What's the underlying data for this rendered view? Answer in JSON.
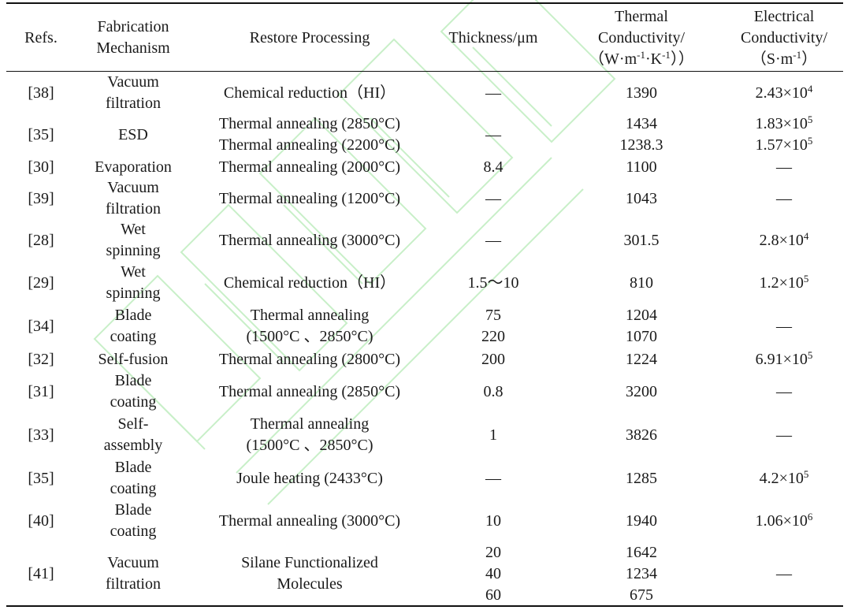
{
  "headers": {
    "refs": "Refs.",
    "mechanism": "Fabrication\nMechanism",
    "processing": "Restore Processing",
    "thickness": "Thickness/μm",
    "thermal_line1": "Thermal",
    "thermal_line2": "Conductivity/",
    "thermal_unit": {
      "open": "（W·m",
      "exp1": "-1",
      "mid": "·K",
      "exp2": "-1",
      "close": "））"
    },
    "electrical_line1": "Electrical",
    "electrical_line2": "Conductivity/",
    "electrical_unit": {
      "open": "（S·m",
      "exp1": "-1",
      "close": "）"
    }
  },
  "rows": [
    {
      "ref": "[38]",
      "mechanism": "Vacuum\nfiltration",
      "processing": [
        "Chemical reduction（HI）"
      ],
      "thickness": [
        "—"
      ],
      "thermal": [
        "1390"
      ],
      "electrical": [
        {
          "base": "2.43×10",
          "exp": "4"
        }
      ]
    },
    {
      "ref": "[35]",
      "mechanism": "ESD",
      "processing": [
        "Thermal annealing (2850°C)",
        "Thermal annealing (2200°C)"
      ],
      "thickness": [
        "—"
      ],
      "thermal": [
        "1434",
        "1238.3"
      ],
      "electrical": [
        {
          "base": "1.83×10",
          "exp": "5"
        },
        {
          "base": "1.57×10",
          "exp": "5"
        }
      ]
    },
    {
      "ref": "[30]",
      "mechanism": "Evaporation",
      "processing": [
        "Thermal annealing (2000°C)"
      ],
      "thickness": [
        "8.4"
      ],
      "thermal": [
        "1100"
      ],
      "electrical": [
        {
          "base": "—",
          "exp": ""
        }
      ]
    },
    {
      "ref": "[39]",
      "mechanism": "Vacuum\nfiltration",
      "processing": [
        "Thermal annealing (1200°C)"
      ],
      "thickness": [
        "—"
      ],
      "thermal": [
        "1043"
      ],
      "electrical": [
        {
          "base": "—",
          "exp": ""
        }
      ]
    },
    {
      "ref": "[28]",
      "mechanism": "Wet\nspinning",
      "processing": [
        "Thermal annealing (3000°C)"
      ],
      "thickness": [
        "—"
      ],
      "thermal": [
        "301.5"
      ],
      "electrical": [
        {
          "base": "2.8×10",
          "exp": "4"
        }
      ]
    },
    {
      "ref": "[29]",
      "mechanism": "Wet\nspinning",
      "processing": [
        "Chemical reduction（HI）"
      ],
      "thickness": [
        "1.5～10"
      ],
      "thermal": [
        "810"
      ],
      "electrical": [
        {
          "base": "1.2×10",
          "exp": "5"
        }
      ]
    },
    {
      "ref": "[34]",
      "mechanism": "Blade\ncoating",
      "processing": [
        "Thermal annealing",
        "(1500°C 、2850°C)"
      ],
      "thickness": [
        "75",
        "220"
      ],
      "thermal": [
        "1204",
        "1070"
      ],
      "electrical": [
        {
          "base": "—",
          "exp": ""
        }
      ]
    },
    {
      "ref": "[32]",
      "mechanism": "Self-fusion",
      "processing": [
        "Thermal annealing (2800°C)"
      ],
      "thickness": [
        "200"
      ],
      "thermal": [
        "1224"
      ],
      "electrical": [
        {
          "base": "6.91×10",
          "exp": "5"
        }
      ]
    },
    {
      "ref": "[31]",
      "mechanism": "Blade\ncoating",
      "processing": [
        "Thermal annealing (2850°C)"
      ],
      "thickness": [
        "0.8"
      ],
      "thermal": [
        "3200"
      ],
      "electrical": [
        {
          "base": "—",
          "exp": ""
        }
      ]
    },
    {
      "ref": "[33]",
      "mechanism": "Self-\nassembly",
      "processing": [
        "Thermal annealing",
        "(1500°C 、2850°C)"
      ],
      "thickness": [
        "1"
      ],
      "thermal": [
        "3826"
      ],
      "electrical": [
        {
          "base": "—",
          "exp": ""
        }
      ]
    },
    {
      "ref": "[35]",
      "mechanism": "Blade\ncoating",
      "processing": [
        "Joule heating (2433°C)"
      ],
      "thickness": [
        "—"
      ],
      "thermal": [
        "1285"
      ],
      "electrical": [
        {
          "base": "4.2×10",
          "exp": "5"
        }
      ]
    },
    {
      "ref": "[40]",
      "mechanism": "Blade\ncoating",
      "processing": [
        "Thermal annealing (3000°C)"
      ],
      "thickness": [
        "10"
      ],
      "thermal": [
        "1940"
      ],
      "electrical": [
        {
          "base": "1.06×10",
          "exp": "6"
        }
      ]
    },
    {
      "ref": "[41]",
      "mechanism": "Vacuum\nfiltration",
      "processing": [
        "Silane Functionalized",
        "Molecules"
      ],
      "thickness": [
        "20",
        "40",
        "60"
      ],
      "thermal": [
        "1642",
        "1234",
        "675"
      ],
      "electrical": [
        {
          "base": "—",
          "exp": ""
        }
      ]
    }
  ]
}
